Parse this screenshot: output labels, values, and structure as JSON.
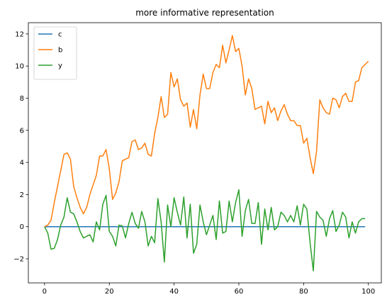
{
  "chart_data": {
    "type": "line",
    "title": "more informative representation",
    "xlabel": "",
    "ylabel": "",
    "xlim": [
      -5,
      104
    ],
    "ylim": [
      -3.5,
      12.7
    ],
    "xticks": [
      0,
      20,
      40,
      60,
      80,
      100
    ],
    "yticks": [
      -2,
      0,
      2,
      4,
      6,
      8,
      10,
      12
    ],
    "grid": false,
    "legend": "top-left",
    "series": [
      {
        "name": "c",
        "color": "#1f77b4",
        "x": [
          0,
          99
        ],
        "values": [
          0,
          0
        ]
      },
      {
        "name": "b",
        "color": "#ff7f0e",
        "values": [
          0,
          0.1,
          0.4,
          1.5,
          2.5,
          3.5,
          4.5,
          4.6,
          4.2,
          2.5,
          1.8,
          1.2,
          0.8,
          1.2,
          2.0,
          2.6,
          3.2,
          4.4,
          4.4,
          4.8,
          3.6,
          1.7,
          2.1,
          2.8,
          4.1,
          4.2,
          4.3,
          5.3,
          5.4,
          4.8,
          4.9,
          5.2,
          4.5,
          4.4,
          5.8,
          6.8,
          8.1,
          6.8,
          7.0,
          9.6,
          8.7,
          9.2,
          7.9,
          7.5,
          7.7,
          6.2,
          7.3,
          6.1,
          8.2,
          9.5,
          8.6,
          8.6,
          9.6,
          10.1,
          9.9,
          11.3,
          10.2,
          11.0,
          11.9,
          10.9,
          11.1,
          10.0,
          8.2,
          9.2,
          8.6,
          7.3,
          7.4,
          7.5,
          6.4,
          7.8,
          7.1,
          7.4,
          6.6,
          7.2,
          7.6,
          7.0,
          6.6,
          6.6,
          6.3,
          6.3,
          5.2,
          5.5,
          4.3,
          3.3,
          4.7,
          7.9,
          7.4,
          7.1,
          7.0,
          8.0,
          7.9,
          7.4,
          8.1,
          8.3,
          7.8,
          7.8,
          9.0,
          9.1,
          9.9,
          10.1,
          10.3
        ]
      },
      {
        "name": "y",
        "color": "#2ca02c",
        "values": [
          0,
          -0.4,
          -1.4,
          -1.35,
          -0.8,
          0.1,
          0.6,
          1.8,
          0.9,
          0.8,
          0.3,
          -0.3,
          -0.7,
          -0.6,
          -0.5,
          -0.95,
          0.3,
          -0.2,
          1.4,
          1.95,
          -0.3,
          -0.6,
          -1.2,
          0.1,
          0.05,
          -0.7,
          0.2,
          0.9,
          0.2,
          -0.1,
          0.95,
          0.3,
          -1.2,
          -0.6,
          -1.0,
          1.75,
          0.3,
          -2.2,
          1.35,
          0.0,
          1.8,
          0.9,
          0.1,
          1.85,
          -0.7,
          1.4,
          -1.65,
          -1.1,
          1.35,
          0.3,
          -0.5,
          0.1,
          0.7,
          -0.8,
          1.6,
          -0.4,
          -0.3,
          1.6,
          0.3,
          1.5,
          2.3,
          -0.6,
          1.0,
          1.7,
          0.2,
          0.2,
          1.5,
          -1.1,
          1.1,
          -0.2,
          1.2,
          -0.2,
          0.0,
          0.9,
          0.7,
          0.3,
          0.7,
          0.3,
          1.3,
          0.1,
          1.4,
          1.1,
          -1.0,
          -2.75,
          0.95,
          0.6,
          0.4,
          -0.6,
          0.5,
          1.0,
          -0.3,
          0.1,
          0.9,
          0.6,
          -0.7,
          0.3,
          -0.4,
          0.3,
          0.5,
          0.5
        ]
      }
    ]
  }
}
